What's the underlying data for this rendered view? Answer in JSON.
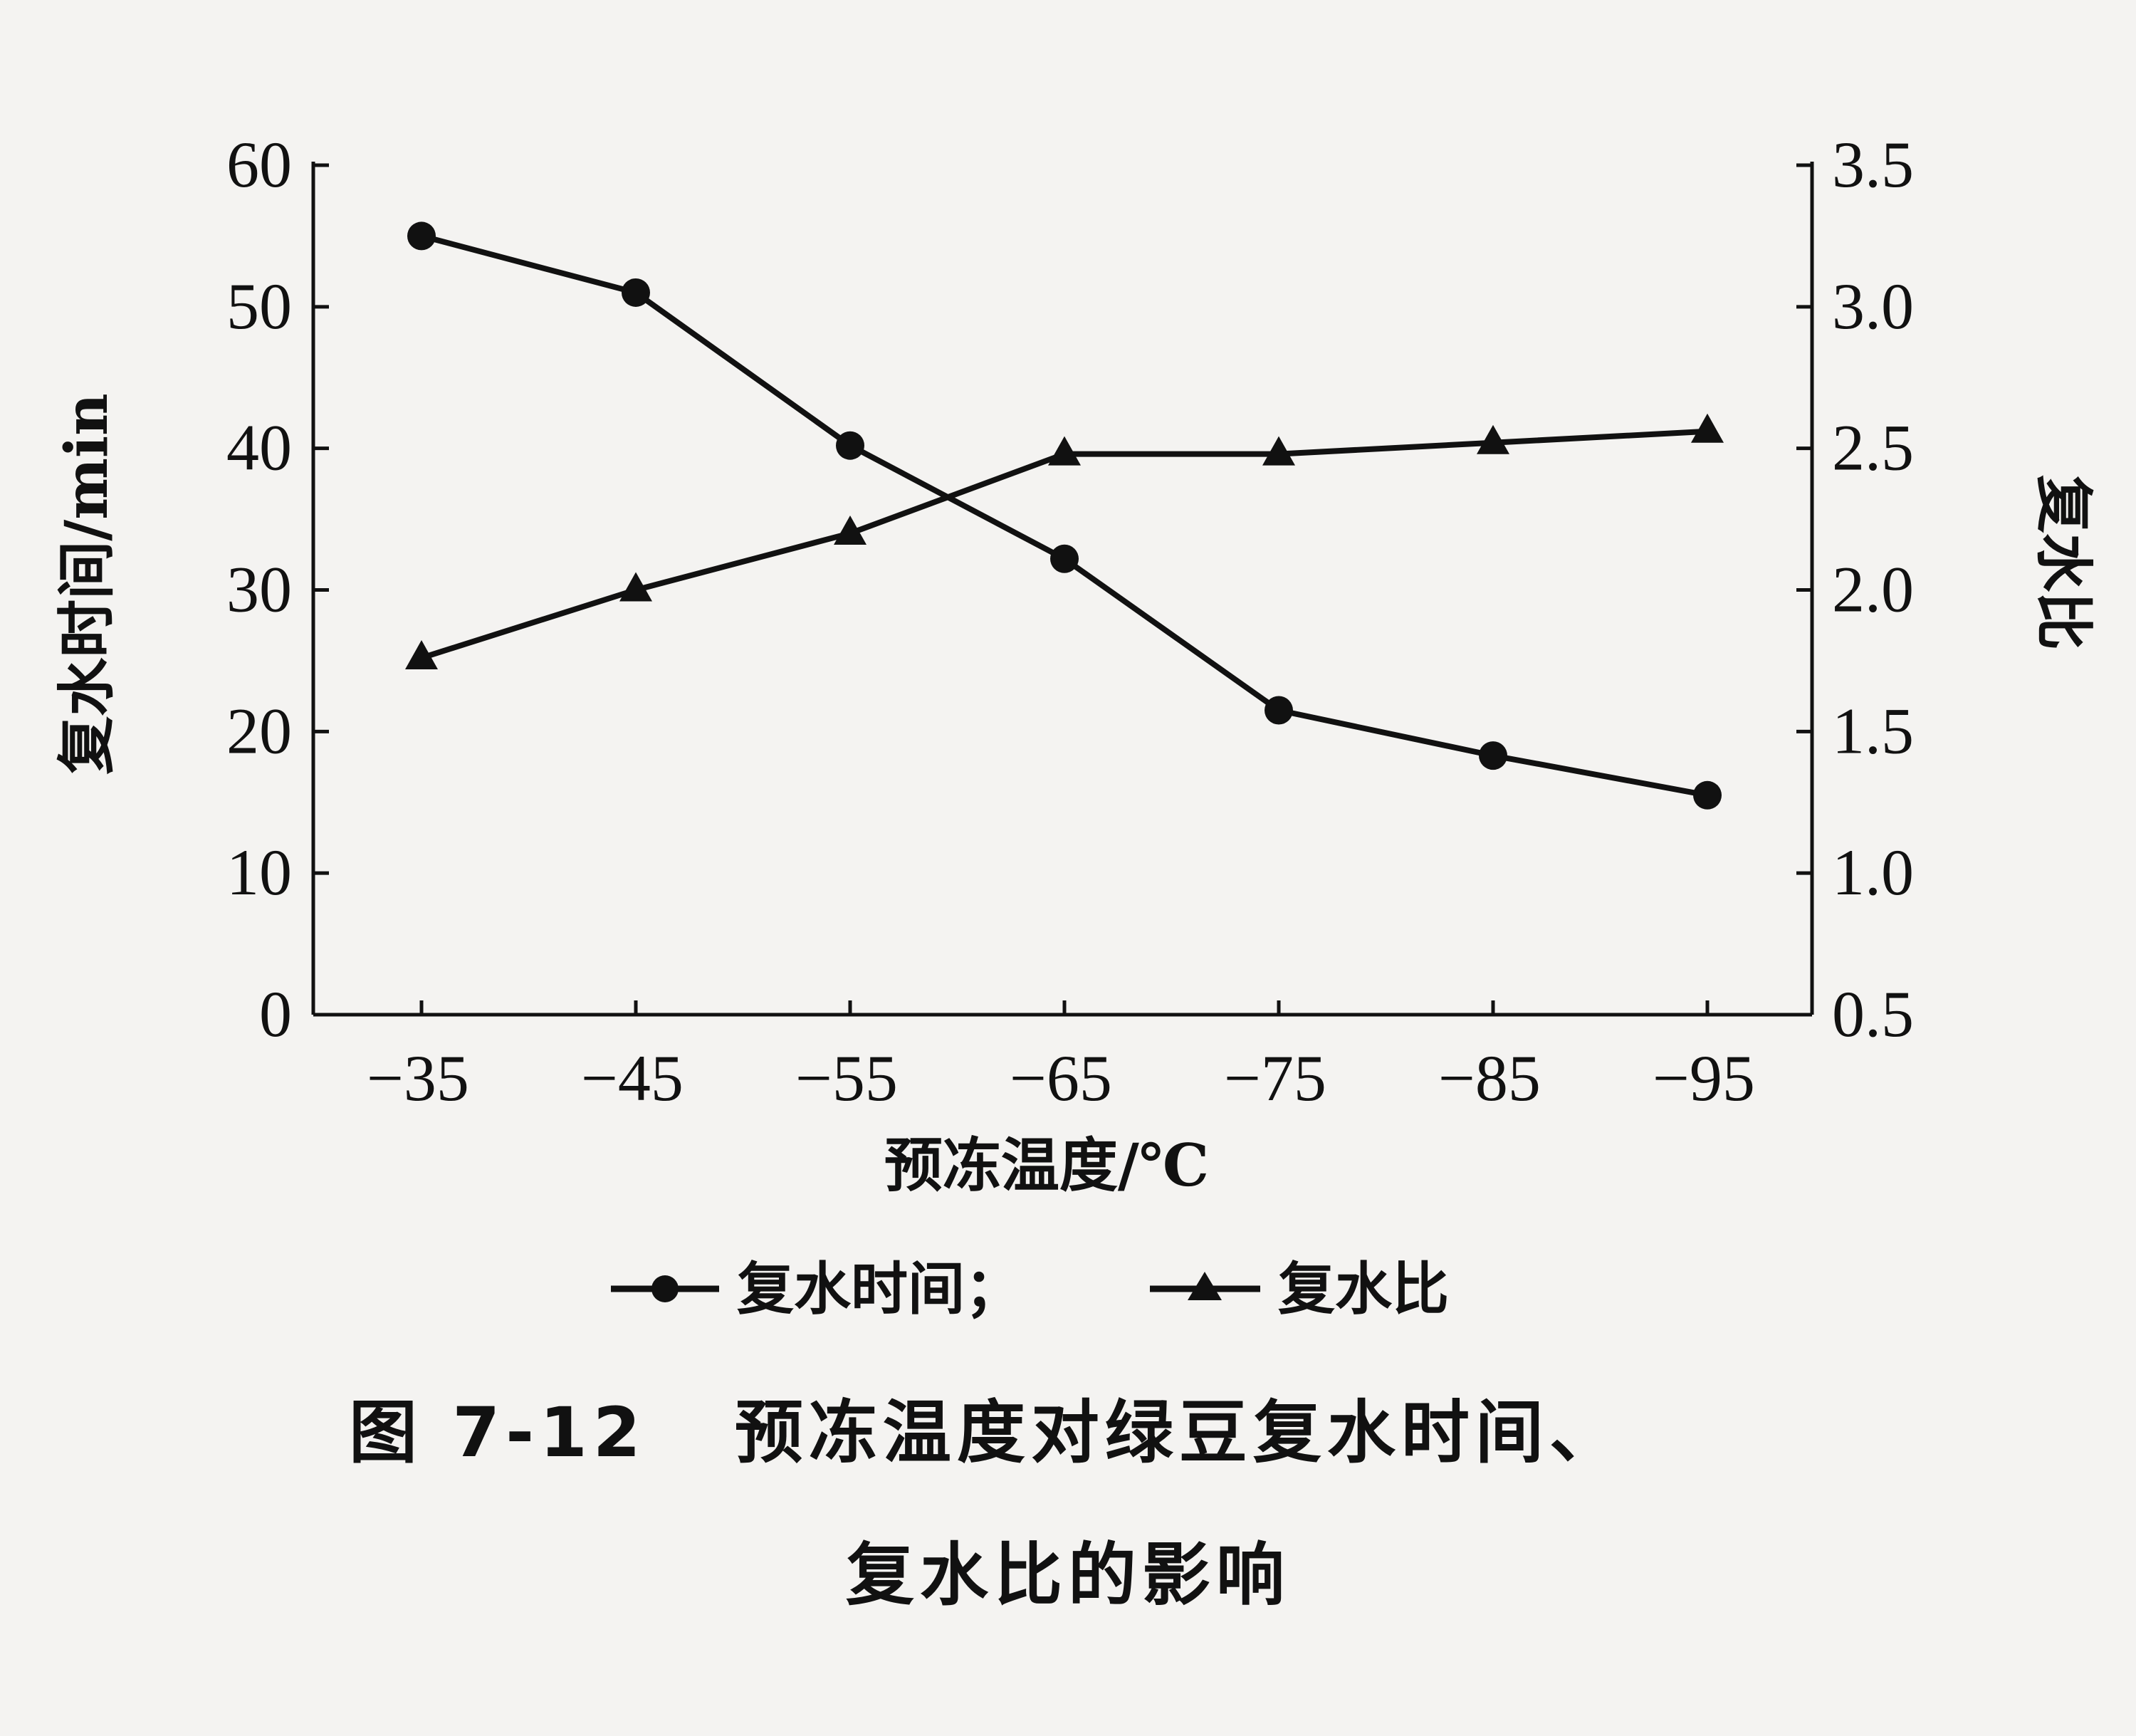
{
  "chart_data": {
    "type": "line",
    "categories": [
      "−35",
      "−45",
      "−55",
      "−65",
      "−75",
      "−85",
      "−95"
    ],
    "x": [
      -35,
      -45,
      -55,
      -65,
      -75,
      -85,
      -95
    ],
    "xlabel": "预冻温度/℃",
    "ylabel": "复水时间/min",
    "y2label": "复水比",
    "ylim": [
      0,
      60
    ],
    "y2lim": [
      0.5,
      3.5
    ],
    "yticks": [
      "0",
      "10",
      "20",
      "30",
      "40",
      "50",
      "60"
    ],
    "y2ticks": [
      "0.5",
      "1.0",
      "1.5",
      "2.0",
      "2.5",
      "3.0",
      "3.5"
    ],
    "series": [
      {
        "name": "复水时间",
        "axis": "left",
        "marker": "circle",
        "values": [
          55,
          51,
          40.2,
          32.2,
          21.5,
          18.3,
          15.5
        ]
      },
      {
        "name": "复水比",
        "axis": "right",
        "marker": "triangle",
        "values": [
          1.76,
          2.0,
          2.2,
          2.48,
          2.48,
          2.52,
          2.56
        ]
      }
    ],
    "legend": {
      "position": "bottom",
      "items": [
        "复水时间；",
        "复水比"
      ]
    },
    "grid": false,
    "colors": {
      "line": "#111111",
      "background": "#f4f3f1"
    }
  },
  "caption": {
    "line1": "图 7-12   预冻温度对绿豆复水时间、",
    "line2": "复水比的影响"
  }
}
